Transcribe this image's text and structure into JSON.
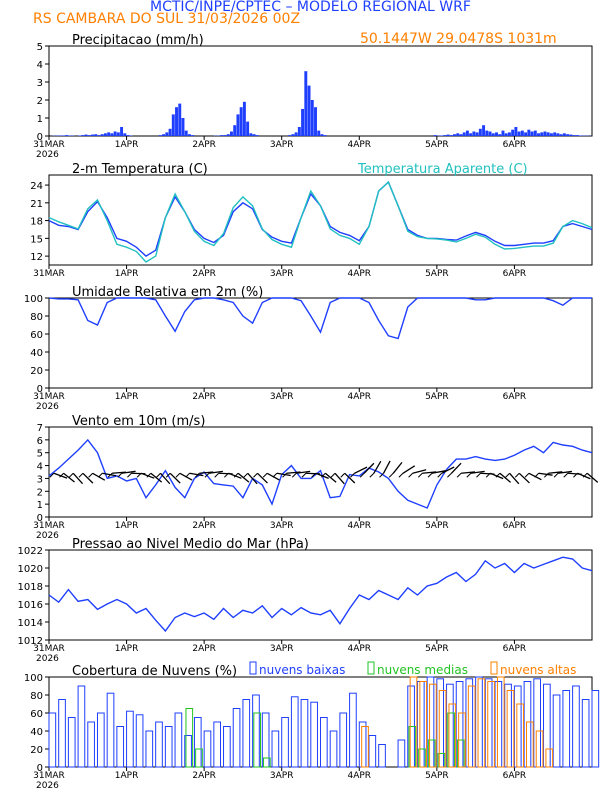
{
  "header": {
    "line1": "MCTIC/INPE/CPTEC – MODELO REGIONAL WRF",
    "line2": "RS CAMBARA DO SUL     31/03/2026 00Z",
    "coords": "50.1447W 29.0478S 1031m"
  },
  "colors": {
    "blue": "#1f3fff",
    "cyan": "#22c0c0",
    "orange": "#ff8000",
    "green": "#22c422",
    "black": "#000000"
  },
  "time_axis": {
    "labels": [
      "31MAR",
      "1APR",
      "2APR",
      "3APR",
      "4APR",
      "5APR",
      "6APR"
    ],
    "year": "2026"
  },
  "chart_data": [
    {
      "type": "bar",
      "title": "Precipitacao (mm/h)",
      "ylim": [
        0,
        5
      ],
      "yticks": [
        "0",
        "1",
        "2",
        "3",
        "4",
        "5"
      ],
      "time_hours": [
        1,
        2,
        3,
        4,
        5,
        6,
        7,
        8,
        9,
        10,
        11,
        12,
        13,
        14,
        15,
        16,
        17,
        18,
        19,
        20,
        21,
        22,
        23,
        24,
        25,
        26,
        27,
        28,
        29,
        30,
        31,
        32,
        33,
        34,
        35,
        36,
        37,
        38,
        39,
        40,
        41,
        42,
        43,
        44,
        45,
        46,
        47,
        48,
        49,
        50,
        51,
        52,
        53,
        54,
        55,
        56,
        57,
        58,
        59,
        60,
        61,
        62,
        63,
        64,
        65,
        66,
        67,
        68,
        69,
        70,
        71,
        72,
        73,
        74,
        75,
        76,
        77,
        78,
        79,
        80,
        81,
        82,
        83,
        84,
        85,
        86,
        87,
        88,
        89,
        90,
        91,
        92,
        93,
        94,
        95,
        96,
        97,
        98,
        99,
        100,
        101,
        102,
        103,
        104,
        105,
        106,
        107,
        108,
        109,
        110,
        111,
        112,
        113,
        114,
        115,
        116,
        117,
        118,
        119,
        120,
        121,
        122,
        123,
        124,
        125,
        126,
        127,
        128,
        129,
        130,
        131,
        132,
        133,
        134,
        135,
        136,
        137,
        138,
        139,
        140,
        141,
        142,
        143,
        144,
        145,
        146,
        147,
        148,
        149,
        150,
        151,
        152,
        153,
        154,
        155,
        156,
        157,
        158,
        159,
        160,
        161,
        162,
        163,
        164,
        165,
        166,
        167,
        168
      ],
      "values": [
        0,
        0.02,
        0.02,
        0.03,
        0.03,
        0.05,
        0.03,
        0.02,
        0,
        0.03,
        0.05,
        0.08,
        0.05,
        0.08,
        0.1,
        0.05,
        0.1,
        0.15,
        0.2,
        0.15,
        0.25,
        0.2,
        0.5,
        0.15,
        0.05,
        0.02,
        0,
        0,
        0,
        0,
        0,
        0,
        0,
        0,
        0.05,
        0.1,
        0.2,
        0.4,
        1.2,
        1.6,
        1.8,
        1.0,
        0.3,
        0.1,
        0.05,
        0,
        0,
        0,
        0,
        0,
        0,
        0.02,
        0.02,
        0.05,
        0.05,
        0.1,
        0.25,
        0.6,
        1.2,
        1.6,
        1.9,
        0.8,
        0.15,
        0.1,
        0.05,
        0,
        0,
        0,
        0,
        0,
        0,
        0,
        0,
        0,
        0.05,
        0.1,
        0.2,
        0.5,
        1.5,
        3.6,
        2.8,
        2.0,
        1.6,
        0.3,
        0.1,
        0.05,
        0,
        0,
        0,
        0,
        0,
        0,
        0,
        0,
        0,
        0,
        0,
        0,
        0,
        0,
        0,
        0,
        0,
        0,
        0,
        0,
        0,
        0,
        0,
        0,
        0,
        0,
        0,
        0,
        0,
        0,
        0,
        0,
        0,
        0.05,
        0.02,
        0.03,
        0.05,
        0.08,
        0.05,
        0.1,
        0.15,
        0.1,
        0.2,
        0.3,
        0.15,
        0.25,
        0.2,
        0.4,
        0.6,
        0.3,
        0.25,
        0.15,
        0.2,
        0.1,
        0.3,
        0.15,
        0.2,
        0.35,
        0.5,
        0.25,
        0.3,
        0.2,
        0.35,
        0.25,
        0.3,
        0.15,
        0.2,
        0.25,
        0.2,
        0.15,
        0.2,
        0.15,
        0.1,
        0.15,
        0.1,
        0.08,
        0.05,
        0.05,
        0.03,
        0.02,
        0.02,
        0.01
      ]
    },
    {
      "type": "line",
      "title": "2-m Temperatura (C)",
      "legend": "Temperatura Aparente (C)",
      "ylim": [
        10.5,
        25.7
      ],
      "yticks": [
        "12",
        "15",
        "18",
        "21",
        "24"
      ],
      "time_hours": [
        0,
        3,
        6,
        9,
        12,
        15,
        18,
        21,
        24,
        27,
        30,
        33,
        36,
        39,
        42,
        45,
        48,
        51,
        54,
        57,
        60,
        63,
        66,
        69,
        72,
        75,
        78,
        81,
        84,
        87,
        90,
        93,
        96,
        99,
        102,
        105,
        108,
        111,
        114,
        117,
        120,
        123,
        126,
        129,
        132,
        135,
        138,
        141,
        144,
        147,
        150,
        153,
        156,
        159,
        162,
        165,
        168
      ],
      "series": [
        {
          "name": "Temperatura 2m",
          "values": [
            18.0,
            17.2,
            17.0,
            16.5,
            19.5,
            21.2,
            18.5,
            15.0,
            14.5,
            13.5,
            12.0,
            13.0,
            18.5,
            22.0,
            19.5,
            16.5,
            15.0,
            14.3,
            15.5,
            19.5,
            21.0,
            20.0,
            16.5,
            15.2,
            14.5,
            14.2,
            18.5,
            22.5,
            20.5,
            17.0,
            16.0,
            15.5,
            14.6,
            17.0,
            23.0,
            24.5,
            20.5,
            16.5,
            15.5,
            15.0,
            15.0,
            14.8,
            14.7,
            15.4,
            16.0,
            15.5,
            14.5,
            13.8,
            13.8,
            14.0,
            14.2,
            14.2,
            14.6,
            17.0,
            17.5,
            17.0,
            16.5
          ]
        },
        {
          "name": "Temperatura Aparente",
          "values": [
            18.5,
            17.8,
            17.2,
            16.6,
            20.0,
            21.5,
            18.0,
            14.0,
            13.5,
            12.8,
            11.0,
            12.0,
            18.5,
            22.5,
            19.5,
            16.2,
            14.5,
            13.8,
            15.8,
            20.2,
            22.0,
            20.5,
            16.6,
            14.8,
            14.0,
            13.5,
            18.5,
            23.0,
            20.5,
            16.6,
            15.5,
            15.0,
            14.0,
            17.0,
            23.0,
            24.5,
            20.5,
            16.2,
            15.3,
            15.0,
            14.9,
            14.7,
            14.4,
            15.0,
            15.7,
            15.2,
            14.0,
            13.2,
            13.3,
            13.5,
            13.7,
            13.7,
            14.2,
            17.0,
            18.0,
            17.5,
            16.8
          ]
        }
      ]
    },
    {
      "type": "line",
      "title": "Umidade Relativa em 2m (%)",
      "ylim": [
        0,
        100
      ],
      "yticks": [
        "0",
        "20",
        "40",
        "60",
        "80",
        "100"
      ],
      "time_hours": [
        0,
        3,
        6,
        9,
        12,
        15,
        18,
        21,
        24,
        27,
        30,
        33,
        36,
        39,
        42,
        45,
        48,
        51,
        54,
        57,
        60,
        63,
        66,
        69,
        72,
        75,
        78,
        81,
        84,
        87,
        90,
        93,
        96,
        99,
        102,
        105,
        108,
        111,
        114,
        117,
        120,
        123,
        126,
        129,
        132,
        135,
        138,
        141,
        144,
        147,
        150,
        153,
        156,
        159,
        162,
        165,
        168
      ],
      "series": [
        {
          "name": "Umidade Relativa",
          "values": [
            100,
            99,
            99,
            98,
            75,
            70,
            95,
            100,
            100,
            100,
            100,
            98,
            80,
            63,
            85,
            98,
            100,
            100,
            98,
            95,
            80,
            72,
            95,
            100,
            100,
            100,
            97,
            80,
            62,
            95,
            100,
            100,
            100,
            95,
            75,
            58,
            55,
            90,
            100,
            100,
            100,
            100,
            100,
            100,
            98,
            98,
            100,
            100,
            100,
            100,
            100,
            100,
            97,
            92,
            100,
            100,
            100
          ]
        }
      ]
    },
    {
      "type": "line",
      "title": "Vento em 10m (m/s)",
      "ylim": [
        0,
        7
      ],
      "yticks": [
        "0",
        "1",
        "2",
        "3",
        "4",
        "5",
        "6",
        "7"
      ],
      "time_hours": [
        0,
        3,
        6,
        9,
        12,
        15,
        18,
        21,
        24,
        27,
        30,
        33,
        36,
        39,
        42,
        45,
        48,
        51,
        54,
        57,
        60,
        63,
        66,
        69,
        72,
        75,
        78,
        81,
        84,
        87,
        90,
        93,
        96,
        99,
        102,
        105,
        108,
        111,
        114,
        117,
        120,
        123,
        126,
        129,
        132,
        135,
        138,
        141,
        144,
        147,
        150,
        153,
        156,
        159,
        162,
        165,
        168
      ],
      "series": [
        {
          "name": "Velocidade do vento",
          "values": [
            3.2,
            3.8,
            4.5,
            5.2,
            6.0,
            5.0,
            3.0,
            3.2,
            2.8,
            3.0,
            1.5,
            2.5,
            3.6,
            2.3,
            1.5,
            3.0,
            3.5,
            2.6,
            2.5,
            2.4,
            1.5,
            3.0,
            2.5,
            1.0,
            3.3,
            4.0,
            3.0,
            3.0,
            3.6,
            1.5,
            1.6,
            3.3,
            3.2,
            3.8,
            3.5,
            3.0,
            2.0,
            1.3,
            1.0,
            0.7,
            2.5,
            3.7,
            4.5,
            4.5,
            4.7,
            4.5,
            4.4,
            4.5,
            4.8,
            5.2,
            5.5,
            5.0,
            5.8,
            5.6,
            5.5,
            5.2,
            5.0
          ]
        }
      ],
      "barbs_count": 56
    },
    {
      "type": "line",
      "title": "Pressao ao Nivel Medio do Mar (hPa)",
      "ylim": [
        1012,
        1022
      ],
      "yticks": [
        "1012",
        "1014",
        "1016",
        "1018",
        "1020",
        "1022"
      ],
      "time_hours": [
        0,
        3,
        6,
        9,
        12,
        15,
        18,
        21,
        24,
        27,
        30,
        33,
        36,
        39,
        42,
        45,
        48,
        51,
        54,
        57,
        60,
        63,
        66,
        69,
        72,
        75,
        78,
        81,
        84,
        87,
        90,
        93,
        96,
        99,
        102,
        105,
        108,
        111,
        114,
        117,
        120,
        123,
        126,
        129,
        132,
        135,
        138,
        141,
        144,
        147,
        150,
        153,
        156,
        159,
        162,
        165,
        168
      ],
      "series": [
        {
          "name": "Pressao",
          "values": [
            1017.0,
            1016.2,
            1017.6,
            1016.3,
            1016.5,
            1015.4,
            1016.0,
            1016.5,
            1016.0,
            1015.0,
            1015.5,
            1014.2,
            1013.0,
            1014.5,
            1015.0,
            1014.6,
            1015.0,
            1014.3,
            1015.5,
            1014.5,
            1015.3,
            1015.0,
            1015.8,
            1014.5,
            1015.5,
            1014.8,
            1015.6,
            1015.0,
            1014.8,
            1015.3,
            1013.8,
            1015.5,
            1017.0,
            1016.5,
            1017.5,
            1017.0,
            1016.5,
            1017.8,
            1017.0,
            1018.0,
            1018.3,
            1019.0,
            1019.5,
            1018.5,
            1019.3,
            1020.8,
            1020.0,
            1020.5,
            1019.5,
            1020.5,
            1020.0,
            1020.4,
            1020.8,
            1021.2,
            1021.0,
            1020.0,
            1019.7
          ]
        }
      ]
    },
    {
      "type": "bar",
      "title": "Cobertura de Nuvens (%)",
      "legend": [
        "nuvens baixas",
        "nuvens medias",
        "nuvens altas"
      ],
      "ylim": [
        0,
        100
      ],
      "yticks": [
        "0",
        "20",
        "40",
        "60",
        "80",
        "100"
      ],
      "time_hours": [
        0,
        3,
        6,
        9,
        12,
        15,
        18,
        21,
        24,
        27,
        30,
        33,
        36,
        39,
        42,
        45,
        48,
        51,
        54,
        57,
        60,
        63,
        66,
        69,
        72,
        75,
        78,
        81,
        84,
        87,
        90,
        93,
        96,
        99,
        102,
        105,
        108,
        111,
        114,
        117,
        120,
        123,
        126,
        129,
        132,
        135,
        138,
        141,
        144,
        147,
        150,
        153,
        156,
        159,
        162,
        165,
        168
      ],
      "series": [
        {
          "name": "nuvens baixas",
          "values": [
            60,
            75,
            55,
            90,
            50,
            60,
            82,
            45,
            62,
            58,
            40,
            50,
            45,
            60,
            35,
            55,
            40,
            50,
            45,
            65,
            75,
            80,
            60,
            40,
            55,
            78,
            75,
            72,
            55,
            40,
            60,
            82,
            50,
            35,
            25,
            0,
            30,
            90,
            95,
            100,
            98,
            92,
            95,
            98,
            100,
            98,
            95,
            92,
            90,
            95,
            98,
            92,
            80,
            85,
            90,
            75,
            85
          ]
        },
        {
          "name": "nuvens medias",
          "values": [
            0,
            0,
            0,
            0,
            0,
            0,
            0,
            0,
            0,
            0,
            0,
            0,
            0,
            0,
            65,
            20,
            0,
            0,
            0,
            0,
            0,
            60,
            10,
            0,
            0,
            0,
            0,
            0,
            0,
            0,
            0,
            0,
            0,
            0,
            0,
            0,
            0,
            45,
            20,
            30,
            15,
            60,
            30,
            0,
            0,
            0,
            0,
            0,
            0,
            0,
            0,
            0,
            0,
            0,
            0,
            0,
            0
          ]
        },
        {
          "name": "nuvens altas",
          "values": [
            0,
            0,
            0,
            0,
            0,
            0,
            0,
            0,
            0,
            0,
            0,
            0,
            0,
            0,
            0,
            0,
            0,
            0,
            0,
            0,
            0,
            0,
            0,
            0,
            0,
            0,
            0,
            0,
            0,
            0,
            0,
            0,
            45,
            0,
            0,
            0,
            0,
            100,
            95,
            92,
            85,
            70,
            60,
            90,
            98,
            95,
            100,
            85,
            70,
            50,
            40,
            20,
            0,
            0,
            0,
            0,
            0
          ]
        }
      ]
    }
  ]
}
